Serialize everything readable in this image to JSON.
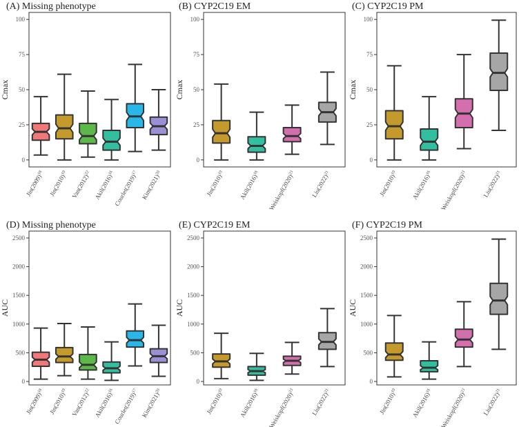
{
  "chart_data": [
    {
      "panel": "A",
      "type": "boxplot",
      "title": "(A) Missing phenotype",
      "ylabel": "Cmax",
      "ylim": [
        -5,
        105
      ],
      "yticks": [
        0,
        25,
        50,
        75,
        100
      ],
      "categories": [
        "Jin(2009)",
        "Jin(2010)",
        "Van(2012)",
        "Akil(2016)",
        "Courlet(2019)",
        "Kim(2021)"
      ],
      "superscripts": [
        "18",
        "19",
        "22",
        "16",
        "17",
        "20"
      ],
      "colors": [
        "#f07878",
        "#c49a2c",
        "#5cb84a",
        "#33bf9f",
        "#29b6e8",
        "#9b8fd6"
      ],
      "boxes": [
        {
          "min": 3.5,
          "q1": 14,
          "median": 20,
          "q3": 26,
          "max": 45
        },
        {
          "min": 0,
          "q1": 15,
          "median": 22.5,
          "q3": 32,
          "max": 61
        },
        {
          "min": 2,
          "q1": 11.5,
          "median": 17,
          "q3": 26,
          "max": 49
        },
        {
          "min": 0,
          "q1": 7,
          "median": 13,
          "q3": 21,
          "max": 43
        },
        {
          "min": 6,
          "q1": 23,
          "median": 31,
          "q3": 40,
          "max": 68
        },
        {
          "min": 7,
          "q1": 18,
          "median": 24,
          "q3": 30.5,
          "max": 50
        }
      ]
    },
    {
      "panel": "B",
      "type": "boxplot",
      "title": "(B) CYP2C19 EM",
      "ylabel": "Cmax",
      "ylim": [
        -5,
        105
      ],
      "yticks": [
        0,
        25,
        50,
        75,
        100
      ],
      "categories": [
        "Jin(2010)",
        "Akil(2016)",
        "Weiskopf(2020)",
        "Liu(2022)"
      ],
      "superscripts": [
        "19",
        "16",
        "23",
        "21"
      ],
      "colors": [
        "#c49a2c",
        "#33bf9f",
        "#d46fae",
        "#a6a6a6"
      ],
      "boxes": [
        {
          "min": 0,
          "q1": 12,
          "median": 19,
          "q3": 28,
          "max": 54
        },
        {
          "min": 0,
          "q1": 5.5,
          "median": 10,
          "q3": 16.5,
          "max": 34
        },
        {
          "min": 4,
          "q1": 13,
          "median": 17,
          "q3": 23,
          "max": 39
        },
        {
          "min": 11,
          "q1": 27,
          "median": 34,
          "q3": 41,
          "max": 62.5
        }
      ]
    },
    {
      "panel": "C",
      "type": "boxplot",
      "title": "(C) CYP2C19 PM",
      "ylabel": "Cmax",
      "ylim": [
        -5,
        105
      ],
      "yticks": [
        0,
        25,
        50,
        75,
        100
      ],
      "categories": [
        "Jin(2010)",
        "Akil(2016)",
        "Weiskopf(2020)",
        "Liu(2022)"
      ],
      "superscripts": [
        "19",
        "16",
        "23",
        "21"
      ],
      "colors": [
        "#c49a2c",
        "#33bf9f",
        "#d46fae",
        "#a6a6a6"
      ],
      "boxes": [
        {
          "min": 0,
          "q1": 15,
          "median": 24,
          "q3": 35,
          "max": 67
        },
        {
          "min": 0,
          "q1": 7,
          "median": 13,
          "q3": 22,
          "max": 45
        },
        {
          "min": 8,
          "q1": 23,
          "median": 33,
          "q3": 43.5,
          "max": 75
        },
        {
          "min": 21,
          "q1": 49.5,
          "median": 62,
          "q3": 76,
          "max": 99.5
        }
      ]
    },
    {
      "panel": "D",
      "type": "boxplot",
      "title": "(D) Missing phenotype",
      "ylabel": "AUC",
      "ylim": [
        -60,
        2620
      ],
      "yticks": [
        0,
        500,
        1000,
        1500,
        2000,
        2500
      ],
      "categories": [
        "Jin(2009)",
        "Jin(2010)",
        "Van(2012)",
        "Akil(2016)",
        "Courlet(2019)",
        "Kim(2021)"
      ],
      "superscripts": [
        "18",
        "19",
        "22",
        "16",
        "17",
        "20"
      ],
      "colors": [
        "#f07878",
        "#c49a2c",
        "#5cb84a",
        "#33bf9f",
        "#29b6e8",
        "#9b8fd6"
      ],
      "boxes": [
        {
          "min": 40,
          "q1": 265,
          "median": 380,
          "q3": 510,
          "max": 930
        },
        {
          "min": 100,
          "q1": 330,
          "median": 435,
          "q3": 590,
          "max": 1010
        },
        {
          "min": 40,
          "q1": 200,
          "median": 290,
          "q3": 470,
          "max": 950
        },
        {
          "min": 20,
          "q1": 150,
          "median": 230,
          "q3": 340,
          "max": 690
        },
        {
          "min": 270,
          "q1": 600,
          "median": 720,
          "q3": 880,
          "max": 1350
        },
        {
          "min": 90,
          "q1": 330,
          "median": 440,
          "q3": 570,
          "max": 980
        }
      ]
    },
    {
      "panel": "E",
      "type": "boxplot",
      "title": "(E) CYP2C19 EM",
      "ylabel": "AUC",
      "ylim": [
        -60,
        2620
      ],
      "yticks": [
        0,
        500,
        1000,
        1500,
        2000,
        2500
      ],
      "categories": [
        "Jin(2010)",
        "Akil(2016)",
        "Weiskopf(2020)",
        "Liu(2022)"
      ],
      "superscripts": [
        "19",
        "16",
        "23",
        "21"
      ],
      "colors": [
        "#c49a2c",
        "#33bf9f",
        "#d46fae",
        "#a6a6a6"
      ],
      "boxes": [
        {
          "min": 50,
          "q1": 250,
          "median": 350,
          "q3": 480,
          "max": 840
        },
        {
          "min": 20,
          "q1": 110,
          "median": 180,
          "q3": 260,
          "max": 490
        },
        {
          "min": 130,
          "q1": 280,
          "median": 360,
          "q3": 440,
          "max": 680
        },
        {
          "min": 260,
          "q1": 560,
          "median": 690,
          "q3": 850,
          "max": 1270
        }
      ]
    },
    {
      "panel": "F",
      "type": "boxplot",
      "title": "(F) CYP2C19 PM",
      "ylabel": "AUC",
      "ylim": [
        -60,
        2620
      ],
      "yticks": [
        0,
        500,
        1000,
        1500,
        2000,
        2500
      ],
      "categories": [
        "Jin(2010)",
        "Akil(2016)",
        "Weiskopf(2020)",
        "Liu(2022)"
      ],
      "superscripts": [
        "19",
        "16",
        "23",
        "21"
      ],
      "colors": [
        "#c49a2c",
        "#33bf9f",
        "#d46fae",
        "#a6a6a6"
      ],
      "boxes": [
        {
          "min": 80,
          "q1": 370,
          "median": 470,
          "q3": 670,
          "max": 1150
        },
        {
          "min": 40,
          "q1": 170,
          "median": 240,
          "q3": 360,
          "max": 690
        },
        {
          "min": 260,
          "q1": 600,
          "median": 730,
          "q3": 910,
          "max": 1390
        },
        {
          "min": 560,
          "q1": 1170,
          "median": 1410,
          "q3": 1710,
          "max": 2480
        }
      ]
    }
  ]
}
